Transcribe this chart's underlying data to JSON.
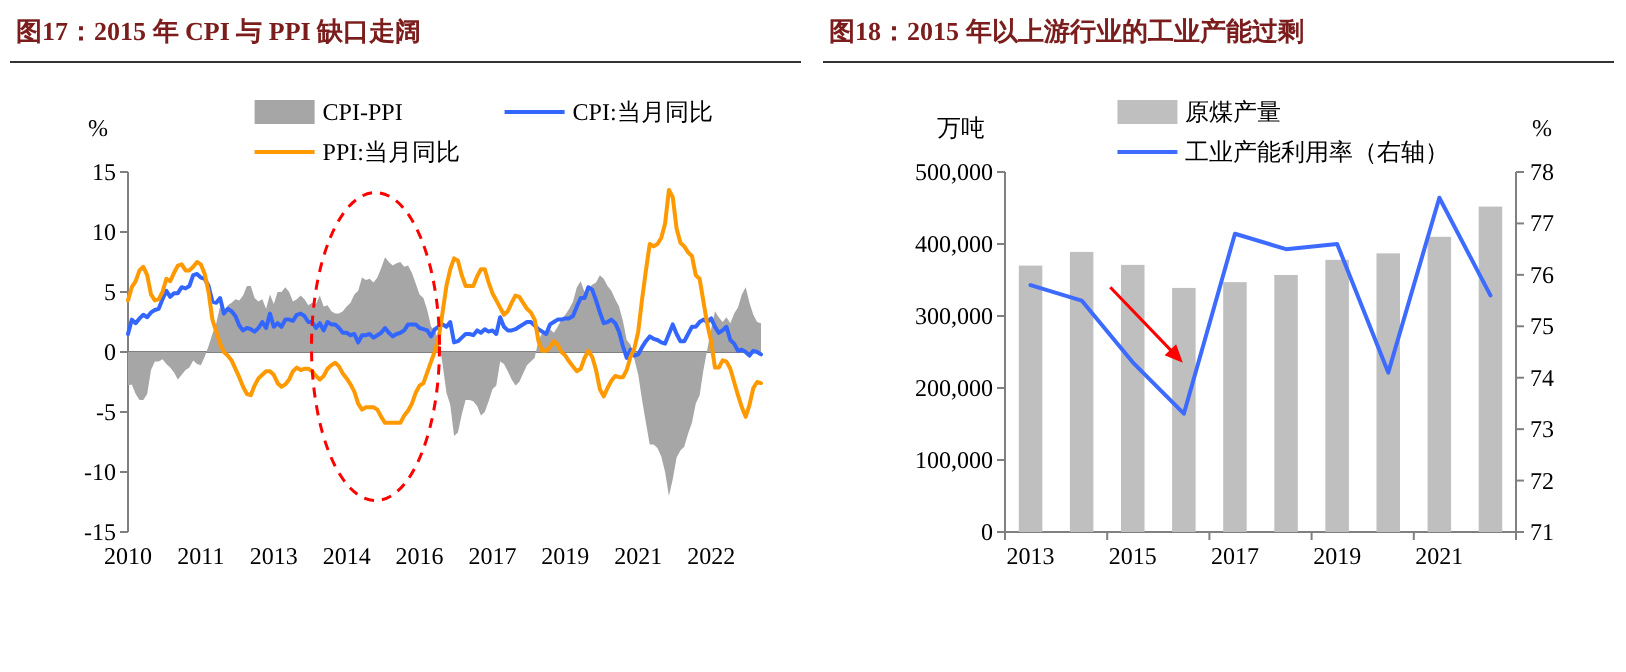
{
  "chart_data": [
    {
      "type": "line",
      "title": "图17：2015 年 CPI 与 PPI 缺口走阔",
      "ylabel": "%",
      "legend": "top",
      "ylim": [
        -15,
        15
      ],
      "yticks": [
        -15,
        -10,
        -5,
        0,
        5,
        10,
        15
      ],
      "x": [
        "2010-01",
        "2010-02",
        "2010-03",
        "2010-04",
        "2010-05",
        "2010-06",
        "2010-07",
        "2010-08",
        "2010-09",
        "2010-10",
        "2010-11",
        "2010-12",
        "2011-01",
        "2011-02",
        "2011-03",
        "2011-04",
        "2011-05",
        "2011-06",
        "2011-07",
        "2011-08",
        "2011-09",
        "2011-10",
        "2011-11",
        "2011-12",
        "2012-01",
        "2012-02",
        "2012-03",
        "2012-04",
        "2012-05",
        "2012-06",
        "2012-07",
        "2012-08",
        "2012-09",
        "2012-10",
        "2012-11",
        "2012-12",
        "2013-01",
        "2013-02",
        "2013-03",
        "2013-04",
        "2013-05",
        "2013-06",
        "2013-07",
        "2013-08",
        "2013-09",
        "2013-10",
        "2013-11",
        "2013-12",
        "2014-01",
        "2014-02",
        "2014-03",
        "2014-04",
        "2014-05",
        "2014-06",
        "2014-07",
        "2014-08",
        "2014-09",
        "2014-10",
        "2014-11",
        "2014-12",
        "2015-01",
        "2015-02",
        "2015-03",
        "2015-04",
        "2015-05",
        "2015-06",
        "2015-07",
        "2015-08",
        "2015-09",
        "2015-10",
        "2015-11",
        "2015-12",
        "2016-01",
        "2016-02",
        "2016-03",
        "2016-04",
        "2016-05",
        "2016-06",
        "2016-07",
        "2016-08",
        "2016-09",
        "2016-10",
        "2016-11",
        "2016-12",
        "2017-01",
        "2017-02",
        "2017-03",
        "2017-04",
        "2017-05",
        "2017-06",
        "2017-07",
        "2017-08",
        "2017-09",
        "2017-10",
        "2017-11",
        "2017-12",
        "2018-01",
        "2018-02",
        "2018-03",
        "2018-04",
        "2018-05",
        "2018-06",
        "2018-07",
        "2018-08",
        "2018-09",
        "2018-10",
        "2018-11",
        "2018-12",
        "2019-01",
        "2019-02",
        "2019-03",
        "2019-04",
        "2019-05",
        "2019-06",
        "2019-07",
        "2019-08",
        "2019-09",
        "2019-10",
        "2019-11",
        "2019-12",
        "2020-01",
        "2020-02",
        "2020-03",
        "2020-04",
        "2020-05",
        "2020-06",
        "2020-07",
        "2020-08",
        "2020-09",
        "2020-10",
        "2020-11",
        "2020-12",
        "2021-01",
        "2021-02",
        "2021-03",
        "2021-04",
        "2021-05",
        "2021-06",
        "2021-07",
        "2021-08",
        "2021-09",
        "2021-10",
        "2021-11",
        "2021-12",
        "2022-01",
        "2022-02",
        "2022-03",
        "2022-04",
        "2022-05",
        "2022-06",
        "2022-07",
        "2022-08",
        "2022-09",
        "2022-10",
        "2022-11",
        "2022-12",
        "2023-01",
        "2023-02",
        "2023-03",
        "2023-04",
        "2023-05",
        "2023-06",
        "2023-07",
        "2023-08",
        "2023-09",
        "2023-10"
      ],
      "xlim": [
        "2010-01",
        "2023-10"
      ],
      "xticks": [
        {
          "value": "2010-01",
          "label": "2010"
        },
        {
          "value": "2011-08",
          "label": "2011"
        },
        {
          "value": "2013-03",
          "label": "2013"
        },
        {
          "value": "2014-10",
          "label": "2014"
        },
        {
          "value": "2016-05",
          "label": "2016"
        },
        {
          "value": "2017-12",
          "label": "2017"
        },
        {
          "value": "2019-07",
          "label": "2019"
        },
        {
          "value": "2021-02",
          "label": "2021"
        },
        {
          "value": "2022-09",
          "label": "2022"
        }
      ],
      "series": [
        {
          "name": "CPI-PPI",
          "type": "area",
          "color": "#a6a6a6",
          "values": [
            -2.8,
            -2.7,
            -3.5,
            -4.0,
            -4.0,
            -3.5,
            -1.5,
            -0.8,
            -0.8,
            -0.6,
            -1.0,
            -1.3,
            -1.7,
            -2.3,
            -1.9,
            -1.5,
            -1.3,
            -0.7,
            -1.0,
            -1.1,
            -0.4,
            0.5,
            1.5,
            2.4,
            3.8,
            3.2,
            3.9,
            4.1,
            4.4,
            4.3,
            4.7,
            5.5,
            5.5,
            4.5,
            4.2,
            4.4,
            3.6,
            4.8,
            4.0,
            5.0,
            5.0,
            5.4,
            5.0,
            4.2,
            4.4,
            4.7,
            4.4,
            3.9,
            4.1,
            4.0,
            4.7,
            3.8,
            3.9,
            3.4,
            3.2,
            3.2,
            3.4,
            3.8,
            4.1,
            4.8,
            5.1,
            6.2,
            6.0,
            6.1,
            5.8,
            6.2,
            7.0,
            7.9,
            7.5,
            7.2,
            7.4,
            7.5,
            7.1,
            7.2,
            6.6,
            5.7,
            4.8,
            4.5,
            3.5,
            2.1,
            1.8,
            0.9,
            -1.0,
            -3.4,
            -4.4,
            -7.0,
            -6.7,
            -5.2,
            -4.0,
            -4.0,
            -4.1,
            -4.5,
            -5.3,
            -5.0,
            -4.1,
            -3.1,
            -2.8,
            -0.8,
            -1.0,
            -1.6,
            -2.3,
            -2.8,
            -2.5,
            -1.8,
            -1.1,
            -0.8,
            -0.5,
            1.0,
            1.6,
            1.4,
            1.9,
            1.6,
            2.1,
            2.7,
            3.1,
            3.6,
            4.2,
            5.4,
            5.9,
            5.0,
            5.3,
            5.6,
            5.8,
            6.4,
            6.1,
            5.5,
            5.1,
            4.4,
            3.8,
            2.6,
            1.0,
            0.6,
            -0.6,
            -1.9,
            -4.0,
            -5.9,
            -7.7,
            -7.7,
            -8.0,
            -8.7,
            -10.0,
            -12.0,
            -10.6,
            -8.8,
            -8.2,
            -7.9,
            -6.8,
            -5.9,
            -4.3,
            -3.6,
            -1.5,
            0.2,
            1.9,
            3.4,
            2.9,
            2.5,
            2.9,
            2.4,
            3.2,
            3.7,
            4.8,
            5.4,
            4.1,
            3.1,
            2.5,
            2.4
          ]
        },
        {
          "name": "CPI:当月同比",
          "color": "#3366ff",
          "values": [
            1.5,
            2.7,
            2.4,
            2.8,
            3.1,
            2.9,
            3.3,
            3.5,
            3.6,
            4.4,
            5.1,
            4.6,
            4.9,
            4.9,
            5.4,
            5.3,
            5.5,
            6.4,
            6.5,
            6.2,
            6.1,
            5.5,
            4.2,
            4.1,
            4.5,
            3.2,
            3.6,
            3.4,
            3.0,
            2.2,
            1.8,
            2.0,
            1.9,
            1.7,
            2.0,
            2.5,
            2.0,
            3.2,
            2.1,
            2.4,
            2.1,
            2.7,
            2.7,
            2.6,
            3.1,
            3.2,
            3.0,
            2.5,
            2.5,
            2.0,
            2.4,
            1.8,
            2.5,
            2.3,
            2.3,
            2.0,
            1.6,
            1.6,
            1.4,
            1.5,
            0.8,
            1.4,
            1.4,
            1.5,
            1.2,
            1.4,
            1.6,
            2.0,
            1.6,
            1.3,
            1.5,
            1.6,
            1.8,
            2.3,
            2.3,
            2.3,
            2.0,
            1.9,
            1.8,
            1.3,
            1.9,
            2.1,
            2.3,
            2.1,
            2.5,
            0.8,
            0.9,
            1.2,
            1.5,
            1.5,
            1.4,
            1.8,
            1.6,
            1.9,
            1.7,
            1.8,
            1.5,
            2.9,
            2.1,
            1.8,
            1.8,
            1.9,
            2.1,
            2.3,
            2.5,
            2.5,
            2.2,
            1.9,
            1.7,
            1.5,
            2.3,
            2.5,
            2.7,
            2.7,
            2.8,
            2.8,
            3.0,
            3.8,
            4.5,
            4.5,
            5.4,
            5.2,
            4.3,
            3.3,
            2.4,
            2.5,
            2.7,
            2.4,
            1.7,
            0.5,
            -0.5,
            0.2,
            -0.3,
            -0.2,
            0.4,
            0.9,
            1.3,
            1.1,
            1.0,
            0.8,
            0.7,
            1.5,
            2.3,
            1.5,
            0.9,
            0.9,
            1.5,
            2.1,
            2.1,
            2.5,
            2.7,
            2.5,
            2.8,
            2.1,
            1.6,
            1.8,
            2.1,
            1.0,
            0.7,
            0.1,
            0.2,
            0.0,
            -0.3,
            0.1,
            0.0,
            -0.2
          ]
        },
        {
          "name": "PPI:当月同比",
          "color": "#ff9900",
          "values": [
            4.3,
            5.4,
            5.9,
            6.8,
            7.1,
            6.4,
            4.8,
            4.3,
            4.4,
            5.0,
            6.1,
            5.9,
            6.6,
            7.2,
            7.3,
            6.8,
            6.8,
            7.1,
            7.5,
            7.3,
            6.5,
            5.0,
            2.7,
            1.7,
            0.7,
            0.0,
            -0.3,
            -0.7,
            -1.4,
            -2.1,
            -2.9,
            -3.5,
            -3.6,
            -2.8,
            -2.2,
            -1.9,
            -1.6,
            -1.6,
            -1.9,
            -2.6,
            -2.9,
            -2.7,
            -2.3,
            -1.6,
            -1.3,
            -1.5,
            -1.4,
            -1.4,
            -1.6,
            -2.0,
            -2.3,
            -2.0,
            -1.4,
            -1.1,
            -0.9,
            -1.2,
            -1.8,
            -2.2,
            -2.7,
            -3.3,
            -4.3,
            -4.8,
            -4.6,
            -4.6,
            -4.6,
            -4.8,
            -5.4,
            -5.9,
            -5.9,
            -5.9,
            -5.9,
            -5.9,
            -5.3,
            -4.9,
            -4.3,
            -3.4,
            -2.8,
            -2.6,
            -1.7,
            -0.8,
            0.1,
            1.2,
            3.3,
            5.5,
            6.9,
            7.8,
            7.6,
            6.4,
            5.5,
            5.5,
            5.5,
            6.3,
            6.9,
            6.9,
            5.8,
            4.9,
            4.3,
            3.7,
            3.1,
            3.4,
            4.1,
            4.7,
            4.6,
            4.1,
            3.6,
            3.3,
            2.7,
            0.9,
            0.1,
            0.1,
            0.4,
            0.9,
            0.6,
            0.0,
            -0.3,
            -0.8,
            -1.2,
            -1.6,
            -1.4,
            -0.5,
            0.1,
            -0.4,
            -1.5,
            -3.1,
            -3.7,
            -3.0,
            -2.4,
            -2.0,
            -2.1,
            -2.1,
            -1.5,
            -0.4,
            0.3,
            1.7,
            4.4,
            6.8,
            9.0,
            8.8,
            9.0,
            9.5,
            10.7,
            13.5,
            12.9,
            10.3,
            9.1,
            8.8,
            8.3,
            8.0,
            6.4,
            6.1,
            4.2,
            2.3,
            0.9,
            -1.3,
            -1.3,
            -0.7,
            -0.8,
            -1.4,
            -2.5,
            -3.6,
            -4.6,
            -5.4,
            -4.4,
            -3.0,
            -2.5,
            -2.6
          ]
        }
      ]
    },
    {
      "type": "bar",
      "title": "图18：2015 年以上游行业的工业产能过剩",
      "ylabel": "万吨",
      "y2label": "%",
      "legend": "top",
      "categories": [
        "2013",
        null,
        "2015",
        null,
        "2017",
        null,
        "2019",
        null,
        "2021",
        null
      ],
      "ylim": [
        0,
        500000
      ],
      "yticks": [
        0,
        {
          "value": 100000,
          "label": "100,000"
        },
        {
          "value": 200000,
          "label": "200,000"
        },
        {
          "value": 300000,
          "label": "300,000"
        },
        {
          "value": 400000,
          "label": "400,000"
        },
        {
          "value": 500000,
          "label": "500,000"
        }
      ],
      "y2lim": [
        71,
        78
      ],
      "y2ticks": [
        71,
        72,
        73,
        74,
        75,
        76,
        77,
        78
      ],
      "series": [
        {
          "name": "原煤产量",
          "color": "#bfbfbf",
          "values": [
            370000,
            389000,
            371000,
            339000,
            347000,
            357000,
            378000,
            387000,
            410000,
            452000
          ]
        },
        {
          "name": "工业产能利用率（右轴）",
          "type": "line",
          "axis": "y2",
          "color": "#3d6bff",
          "values": [
            75.8,
            75.5,
            74.3,
            73.3,
            76.8,
            76.5,
            76.6,
            74.1,
            77.5,
            75.6
          ]
        }
      ]
    }
  ]
}
